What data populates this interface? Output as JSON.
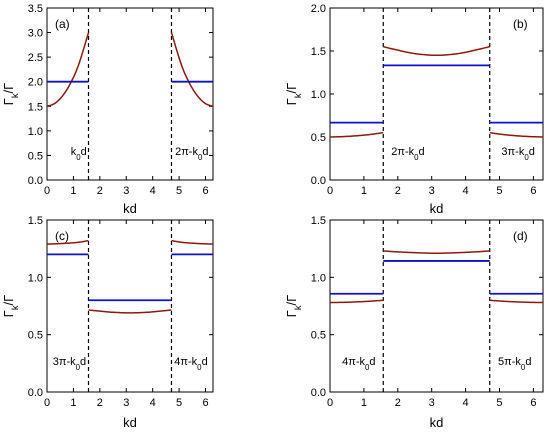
{
  "colors": {
    "red": "#8b1a0e",
    "blue": "#1010c8",
    "axis": "#000000"
  },
  "chart_data": [
    {
      "id": "a",
      "type": "line",
      "panel_label": "(a)",
      "xlim": [
        0,
        6.2832
      ],
      "ylim": [
        0,
        3.5
      ],
      "xticks": [
        0,
        1,
        2,
        3,
        4,
        5,
        6
      ],
      "xtick_labels": [
        "0",
        "1",
        "2",
        "3",
        "4",
        "5",
        "6"
      ],
      "yticks": [
        0,
        0.5,
        1,
        1.5,
        2,
        2.5,
        3,
        3.5
      ],
      "ytick_labels": [
        "0.0",
        "0.5",
        "1.0",
        "1.5",
        "2.0",
        "2.5",
        "3.0",
        "3.5"
      ],
      "xlabel": "kd",
      "ylabel": "Γk/Γ",
      "vlines": [
        1.571,
        4.712
      ],
      "segment_labels": [
        {
          "text": "k0d",
          "x": 1.2,
          "y": 0.14
        },
        {
          "text": "2π-k0d",
          "x": 5.48,
          "y": 0.14
        }
      ],
      "series": [
        {
          "color": "red",
          "points": [
            [
              0,
              1.5
            ],
            [
              0.3,
              1.56
            ],
            [
              0.6,
              1.72
            ],
            [
              0.9,
              1.98
            ],
            [
              1.2,
              2.35
            ],
            [
              1.571,
              3.0
            ]
          ]
        },
        {
          "color": "red",
          "points": [
            [
              4.712,
              3.0
            ],
            [
              5.083,
              2.35
            ],
            [
              5.383,
              1.98
            ],
            [
              5.683,
              1.72
            ],
            [
              5.983,
              1.56
            ],
            [
              6.2832,
              1.5
            ]
          ]
        },
        {
          "color": "blue",
          "points": [
            [
              0,
              2.0
            ],
            [
              1.571,
              2.0
            ]
          ]
        },
        {
          "color": "blue",
          "points": [
            [
              4.712,
              2.0
            ],
            [
              6.2832,
              2.0
            ]
          ]
        }
      ]
    },
    {
      "id": "b",
      "type": "line",
      "panel_label": "(b)",
      "xlim": [
        0,
        6.2832
      ],
      "ylim": [
        0,
        2.0
      ],
      "xticks": [
        0,
        1,
        2,
        3,
        4,
        5,
        6
      ],
      "xtick_labels": [
        "0",
        "1",
        "2",
        "3",
        "4",
        "5",
        "6"
      ],
      "yticks": [
        0,
        0.5,
        1,
        1.5,
        2
      ],
      "ytick_labels": [
        "0.0",
        "0.5",
        "1.0",
        "1.5",
        "2.0"
      ],
      "xlabel": "kd",
      "ylabel": "Γk/Γ",
      "vlines": [
        1.571,
        4.712
      ],
      "segment_labels": [
        {
          "text": "2π-k0d",
          "x": 2.3,
          "y": 0.08
        },
        {
          "text": "3π-k0d",
          "x": 5.55,
          "y": 0.08
        }
      ],
      "series": [
        {
          "color": "red",
          "points": [
            [
              0,
              0.5
            ],
            [
              0.4,
              0.505
            ],
            [
              0.8,
              0.515
            ],
            [
              1.2,
              0.53
            ],
            [
              1.571,
              0.55
            ]
          ]
        },
        {
          "color": "red",
          "points": [
            [
              1.571,
              1.55
            ],
            [
              2.0,
              1.51
            ],
            [
              2.5,
              1.47
            ],
            [
              3.1416,
              1.45
            ],
            [
              3.78,
              1.47
            ],
            [
              4.28,
              1.51
            ],
            [
              4.712,
              1.55
            ]
          ]
        },
        {
          "color": "red",
          "points": [
            [
              4.712,
              0.55
            ],
            [
              5.083,
              0.53
            ],
            [
              5.483,
              0.515
            ],
            [
              5.883,
              0.505
            ],
            [
              6.2832,
              0.5
            ]
          ]
        },
        {
          "color": "blue",
          "points": [
            [
              0,
              0.667
            ],
            [
              1.571,
              0.667
            ]
          ]
        },
        {
          "color": "blue",
          "points": [
            [
              1.571,
              1.333
            ],
            [
              4.712,
              1.333
            ]
          ]
        },
        {
          "color": "blue",
          "points": [
            [
              4.712,
              0.667
            ],
            [
              6.2832,
              0.667
            ]
          ]
        }
      ]
    },
    {
      "id": "c",
      "type": "line",
      "panel_label": "(c)",
      "xlim": [
        0,
        6.2832
      ],
      "ylim": [
        0,
        1.5
      ],
      "xticks": [
        0,
        1,
        2,
        3,
        4,
        5,
        6
      ],
      "xtick_labels": [
        "0",
        "1",
        "2",
        "3",
        "4",
        "5",
        "6"
      ],
      "yticks": [
        0,
        0.5,
        1,
        1.5
      ],
      "ytick_labels": [
        "0.0",
        "0.5",
        "1.0",
        "1.5"
      ],
      "xlabel": "kd",
      "ylabel": "Γk/Γ",
      "vlines": [
        1.571,
        4.712
      ],
      "segment_labels": [
        {
          "text": "3π-k0d",
          "x": 0.85,
          "y": 0.08
        },
        {
          "text": "4π-k0d",
          "x": 5.45,
          "y": 0.08
        }
      ],
      "series": [
        {
          "color": "red",
          "points": [
            [
              0,
              1.29
            ],
            [
              0.4,
              1.293
            ],
            [
              0.8,
              1.298
            ],
            [
              1.2,
              1.306
            ],
            [
              1.571,
              1.32
            ]
          ]
        },
        {
          "color": "red",
          "points": [
            [
              1.571,
              0.715
            ],
            [
              2.0,
              0.705
            ],
            [
              2.5,
              0.695
            ],
            [
              3.1416,
              0.69
            ],
            [
              3.78,
              0.695
            ],
            [
              4.28,
              0.705
            ],
            [
              4.712,
              0.715
            ]
          ]
        },
        {
          "color": "red",
          "points": [
            [
              4.712,
              1.32
            ],
            [
              5.083,
              1.306
            ],
            [
              5.483,
              1.298
            ],
            [
              5.883,
              1.293
            ],
            [
              6.2832,
              1.29
            ]
          ]
        },
        {
          "color": "blue",
          "points": [
            [
              0,
              1.2
            ],
            [
              1.571,
              1.2
            ]
          ]
        },
        {
          "color": "blue",
          "points": [
            [
              1.571,
              0.8
            ],
            [
              4.712,
              0.8
            ]
          ]
        },
        {
          "color": "blue",
          "points": [
            [
              4.712,
              1.2
            ],
            [
              6.2832,
              1.2
            ]
          ]
        }
      ]
    },
    {
      "id": "d",
      "type": "line",
      "panel_label": "(d)",
      "xlim": [
        0,
        6.2832
      ],
      "ylim": [
        0,
        1.5
      ],
      "xticks": [
        0,
        1,
        2,
        3,
        4,
        5,
        6
      ],
      "xtick_labels": [
        "0",
        "1",
        "2",
        "3",
        "4",
        "5",
        "6"
      ],
      "yticks": [
        0,
        0.5,
        1,
        1.5
      ],
      "ytick_labels": [
        "0.0",
        "0.5",
        "1.0",
        "1.5"
      ],
      "xlabel": "kd",
      "ylabel": "Γk/Γ",
      "vlines": [
        1.571,
        4.712
      ],
      "segment_labels": [
        {
          "text": "4π-k0d",
          "x": 0.85,
          "y": 0.08
        },
        {
          "text": "5π-k0d",
          "x": 5.45,
          "y": 0.08
        }
      ],
      "series": [
        {
          "color": "red",
          "points": [
            [
              0,
              0.78
            ],
            [
              0.4,
              0.782
            ],
            [
              0.8,
              0.786
            ],
            [
              1.2,
              0.792
            ],
            [
              1.571,
              0.8
            ]
          ]
        },
        {
          "color": "red",
          "points": [
            [
              1.571,
              1.23
            ],
            [
              2.0,
              1.222
            ],
            [
              2.5,
              1.215
            ],
            [
              3.1416,
              1.21
            ],
            [
              3.78,
              1.215
            ],
            [
              4.28,
              1.222
            ],
            [
              4.712,
              1.23
            ]
          ]
        },
        {
          "color": "red",
          "points": [
            [
              4.712,
              0.8
            ],
            [
              5.083,
              0.792
            ],
            [
              5.483,
              0.786
            ],
            [
              5.883,
              0.782
            ],
            [
              6.2832,
              0.78
            ]
          ]
        },
        {
          "color": "blue",
          "points": [
            [
              0,
              0.857
            ],
            [
              1.571,
              0.857
            ]
          ]
        },
        {
          "color": "blue",
          "points": [
            [
              1.571,
              1.143
            ],
            [
              4.712,
              1.143
            ]
          ]
        },
        {
          "color": "blue",
          "points": [
            [
              4.712,
              0.857
            ],
            [
              6.2832,
              0.857
            ]
          ]
        }
      ]
    }
  ]
}
